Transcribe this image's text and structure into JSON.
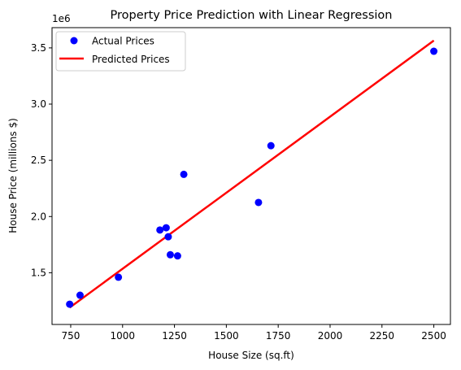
{
  "chart_data": {
    "type": "scatter",
    "title": "Property Price Prediction with Linear Regression",
    "xlabel": "House Size (sq.ft)",
    "ylabel": "House Price (millions $)",
    "y_offset_label": "1e6",
    "xlim": [
      660,
      2580
    ],
    "ylim": [
      1040000,
      3680000
    ],
    "xticks": [
      750,
      1000,
      1250,
      1500,
      1750,
      2000,
      2250,
      2500
    ],
    "yticks": [
      1.5,
      2.0,
      2.5,
      3.0,
      3.5
    ],
    "ytick_labels": [
      "1.5",
      "2.0",
      "2.5",
      "3.0",
      "3.5"
    ],
    "legend_position": "upper-left",
    "grid": false,
    "series": [
      {
        "name": "Actual Prices",
        "kind": "scatter",
        "color": "#0000ff",
        "points": [
          {
            "x": 745,
            "y": 1220000
          },
          {
            "x": 795,
            "y": 1300000
          },
          {
            "x": 980,
            "y": 1460000
          },
          {
            "x": 1180,
            "y": 1880000
          },
          {
            "x": 1210,
            "y": 1900000
          },
          {
            "x": 1220,
            "y": 1820000
          },
          {
            "x": 1230,
            "y": 1660000
          },
          {
            "x": 1265,
            "y": 1650000
          },
          {
            "x": 1295,
            "y": 2375000
          },
          {
            "x": 1655,
            "y": 2125000
          },
          {
            "x": 1715,
            "y": 2630000
          },
          {
            "x": 2500,
            "y": 3470000
          }
        ]
      },
      {
        "name": "Predicted Prices",
        "kind": "line",
        "color": "#ff0000",
        "points": [
          {
            "x": 745,
            "y": 1190000
          },
          {
            "x": 2500,
            "y": 3565000
          }
        ]
      }
    ]
  }
}
